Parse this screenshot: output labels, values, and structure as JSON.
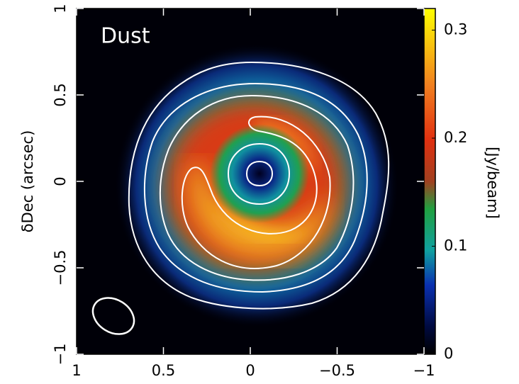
{
  "chart_data": {
    "type": "image",
    "annotation": "Dust",
    "ylabel": "δDec (arcsec)",
    "xlim": [
      1,
      -1
    ],
    "xticks": [
      1,
      0.5,
      0,
      {
        "value": -0.5,
        "label": "−0.5"
      },
      {
        "value": -1,
        "label": "−1"
      }
    ],
    "ylim": [
      -1,
      1
    ],
    "yticks": [
      {
        "value": -1,
        "label": "−1"
      },
      {
        "value": -0.5,
        "label": "−0.5"
      },
      0,
      0.5,
      1
    ],
    "clim": [
      0,
      0.32
    ],
    "cticks": [
      0,
      0.1,
      0.2,
      0.3
    ],
    "colorbar_label": "[Jy/beam]"
  }
}
